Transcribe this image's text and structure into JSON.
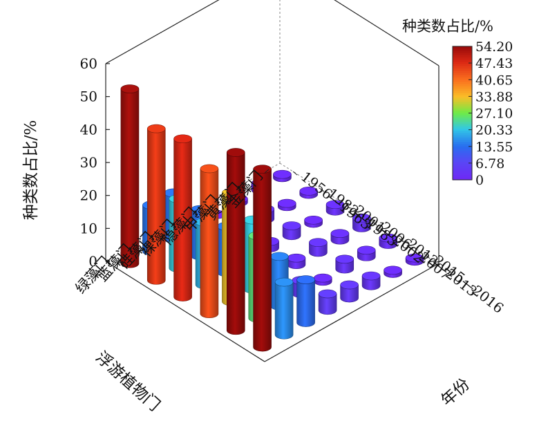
{
  "chart_data": {
    "type": "3d-bar",
    "zlabel": "种类数占比/%",
    "ylabel": "年份",
    "xlabel": "浮游植物门",
    "zlim": [
      0,
      60
    ],
    "z_ticks": [
      "0",
      "10",
      "20",
      "30",
      "40",
      "50",
      "60"
    ],
    "phyla": [
      "绿藻门",
      "蓝藻门",
      "硅藻门",
      "裸藻门",
      "隐藻门",
      "甲藻门",
      "黄藻门",
      "金藻门"
    ],
    "years": [
      "1956—1963",
      "1982—1983",
      "2001—2002",
      "2006—2007",
      "2012—2013",
      "2015—2016"
    ],
    "colorbar": {
      "title": "种类数占比/%",
      "ticks": [
        "54.20",
        "47.43",
        "40.65",
        "33.88",
        "27.10",
        "20.33",
        "13.55",
        "6.78",
        "0"
      ]
    },
    "values_by_year": [
      {
        "year": "1956—1963",
        "values": [
          53,
          14,
          14,
          4,
          0,
          1,
          2,
          1
        ]
      },
      {
        "year": "1982—1983",
        "values": [
          46,
          21,
          14,
          4,
          2,
          3,
          1,
          1
        ]
      },
      {
        "year": "2001—2002",
        "values": [
          48,
          19,
          14,
          4,
          2,
          3,
          1,
          2
        ]
      },
      {
        "year": "2006—2007",
        "values": [
          44,
          33,
          21,
          4,
          2,
          3,
          2,
          3
        ]
      },
      {
        "year": "2012—2013",
        "values": [
          54,
          25,
          15,
          4,
          1,
          3,
          2,
          2
        ]
      },
      {
        "year": "2015—2016",
        "values": [
          54,
          16,
          13,
          5,
          4,
          3,
          1,
          1
        ]
      }
    ]
  }
}
